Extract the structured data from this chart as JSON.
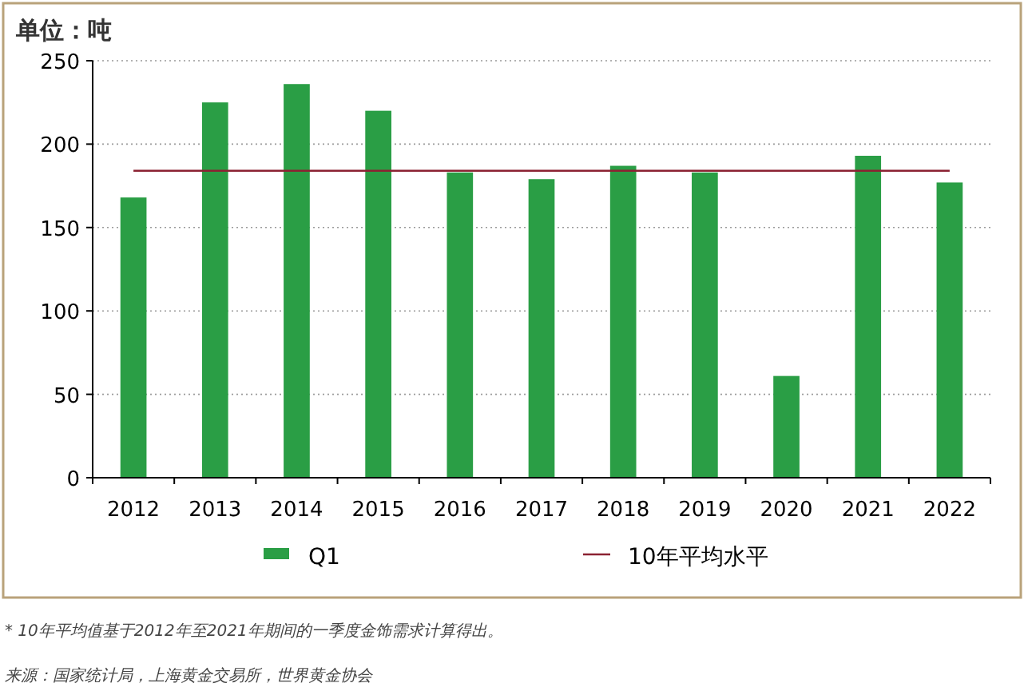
{
  "chart_data": {
    "type": "bar",
    "ylabel": "单位：吨",
    "categories": [
      "2012",
      "2013",
      "2014",
      "2015",
      "2016",
      "2017",
      "2018",
      "2019",
      "2020",
      "2021",
      "2022"
    ],
    "series": [
      {
        "name": "Q1",
        "color": "#2a9e45",
        "values": [
          168,
          225,
          236,
          220,
          183,
          179,
          187,
          183,
          61,
          193,
          177
        ]
      }
    ],
    "ylim": [
      0,
      250
    ],
    "yticks": [
      0,
      50,
      100,
      150,
      200,
      250
    ],
    "grid": "y",
    "legend": "bottom",
    "ref_lines": [
      {
        "axis": "y",
        "value": 184,
        "label": "10年平均水平",
        "color": "#8b2232"
      }
    ],
    "annotations": [
      "* 10年平均值基于2012年至2021年期间的一季度金饰需求计算得出。",
      "来源：国家统计局，上海黄金交易所，世界黄金协会"
    ]
  }
}
